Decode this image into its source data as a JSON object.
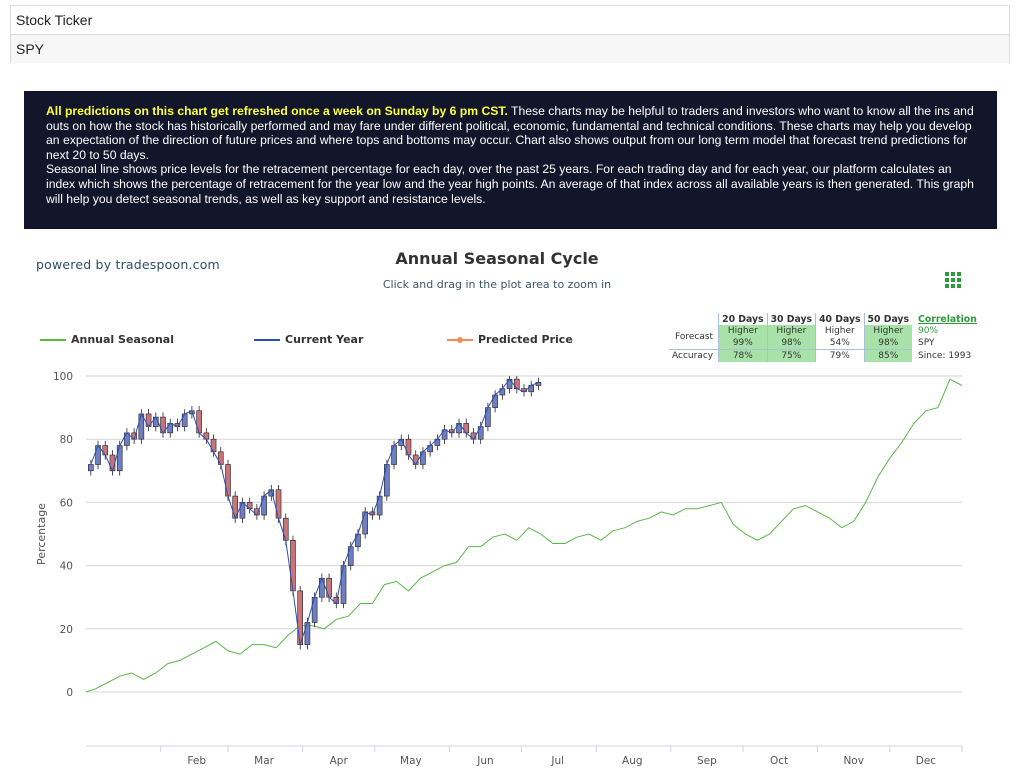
{
  "ticker": {
    "label": "Stock Ticker",
    "value": "SPY"
  },
  "info": {
    "highlight": "All predictions on this chart get refreshed once a week on Sunday by 6 pm CST.",
    "paragraph1": "These charts may be helpful to traders and investors who want to know all the ins and outs on how the stock has historically performed and may fare under different political, economic, fundamental and technical conditions. These charts may help you develop an expectation of the direction of future prices and where tops and bottoms may occur. Chart also shows output from our long term model that forecast trend predictions for next 20 to 50 days.",
    "paragraph2": "Seasonal line shows price levels for the retracement percentage for each day, over the past 25 years. For each trading day and for each year, our platform calculates an index which shows the percentage of retracement for the year low and the year high points. An average of that index across all available years is then generated. This graph will help you detect seasonal trends, as well as key support and resistance levels."
  },
  "powered_by": "powered by tradespoon.com",
  "forecast_table": {
    "headers": [
      "20 Days",
      "30 Days",
      "40 Days",
      "50 Days"
    ],
    "forecast_label": "Forecast",
    "accuracy_label": "Accuracy",
    "forecast": [
      {
        "dir": "Higher",
        "pct": "99%",
        "highlight": true
      },
      {
        "dir": "Higher",
        "pct": "98%",
        "highlight": true
      },
      {
        "dir": "Higher",
        "pct": "54%",
        "highlight": false
      },
      {
        "dir": "Higher",
        "pct": "98%",
        "highlight": true
      }
    ],
    "accuracy": [
      {
        "pct": "78%",
        "highlight": true
      },
      {
        "pct": "75%",
        "highlight": true
      },
      {
        "pct": "79%",
        "highlight": false
      },
      {
        "pct": "85%",
        "highlight": true
      }
    ],
    "correlation_label": "Correlation",
    "correlation_value": "90%",
    "correlation_ticker": "SPY",
    "correlation_since": "Since: 1993"
  },
  "colors": {
    "seasonal": "#58b847",
    "current": "#2c4fb8",
    "predicted": "#f08c5a",
    "candle_up": "#6f7ec0",
    "candle_down": "#c7757a",
    "green_cell": "#a8e2a8",
    "info_bg": "#11162a",
    "highlight_text": "#ffff3a"
  },
  "menu_icon": "grid-menu-icon",
  "chart_data": {
    "type": "line",
    "title": "Annual Seasonal Cycle",
    "subtitle": "Click and drag in the plot area to zoom in",
    "ylabel": "Percentage",
    "xlabel": "",
    "ylim": [
      0,
      100
    ],
    "yticks": [
      0,
      20,
      40,
      60,
      80,
      100
    ],
    "grid": true,
    "legend_position": "top-left",
    "x_tick_labels": [
      "Feb",
      "Mar",
      "Apr",
      "May",
      "Jun",
      "Jul",
      "Aug",
      "Sep",
      "Oct",
      "Nov",
      "Dec"
    ],
    "x_unit": "day of year",
    "series": [
      {
        "name": "Annual Seasonal",
        "type": "line",
        "x": [
          1,
          5,
          10,
          15,
          20,
          25,
          30,
          35,
          40,
          45,
          50,
          55,
          60,
          65,
          70,
          75,
          80,
          85,
          90,
          95,
          100,
          105,
          110,
          115,
          120,
          125,
          130,
          135,
          140,
          145,
          150,
          155,
          160,
          165,
          170,
          175,
          180,
          185,
          190,
          195,
          200,
          205,
          210,
          215,
          220,
          225,
          230,
          235,
          240,
          245,
          250,
          255,
          260,
          265,
          270,
          275,
          280,
          285,
          290,
          295,
          300,
          305,
          310,
          315,
          320,
          325,
          330,
          335,
          340,
          345,
          350,
          355,
          360,
          365
        ],
        "y": [
          0,
          1,
          3,
          5,
          6,
          4,
          6,
          9,
          10,
          12,
          14,
          16,
          13,
          12,
          15,
          15,
          14,
          18,
          21,
          21,
          20,
          23,
          24,
          28,
          28,
          34,
          35,
          32,
          36,
          38,
          40,
          41,
          46,
          46,
          49,
          50,
          48,
          52,
          50,
          47,
          47,
          49,
          50,
          48,
          51,
          52,
          54,
          55,
          57,
          56,
          58,
          58,
          59,
          60,
          53,
          50,
          48,
          50,
          54,
          58,
          59,
          57,
          55,
          52,
          54,
          60,
          68,
          74,
          79,
          85,
          89,
          90,
          99,
          97
        ]
      },
      {
        "name": "Current Year",
        "type": "line",
        "x": [
          3,
          6,
          9,
          12,
          15,
          18,
          21,
          24,
          27,
          30,
          33,
          36,
          39,
          42,
          45,
          48,
          51,
          54,
          57,
          60,
          63,
          66,
          69,
          72,
          75,
          78,
          81,
          84,
          87,
          90,
          93,
          96,
          99,
          102,
          105,
          108,
          111,
          114,
          117,
          120,
          123,
          126,
          129,
          132,
          135,
          138,
          141,
          144,
          147,
          150,
          153,
          156,
          159,
          162,
          165,
          168,
          171,
          174,
          177,
          180,
          183,
          186,
          189
        ],
        "y": [
          72,
          78,
          75,
          70,
          78,
          82,
          80,
          88,
          84,
          87,
          82,
          85,
          84,
          88,
          89,
          82,
          80,
          76,
          72,
          62,
          55,
          60,
          58,
          56,
          62,
          64,
          55,
          48,
          32,
          15,
          22,
          30,
          36,
          30,
          28,
          40,
          46,
          50,
          57,
          56,
          62,
          72,
          78,
          80,
          75,
          72,
          76,
          78,
          80,
          83,
          82,
          85,
          82,
          80,
          84,
          90,
          94,
          96,
          99,
          96,
          95,
          97,
          98
        ]
      },
      {
        "name": "Predicted Price",
        "type": "line",
        "x": [],
        "y": []
      }
    ]
  }
}
